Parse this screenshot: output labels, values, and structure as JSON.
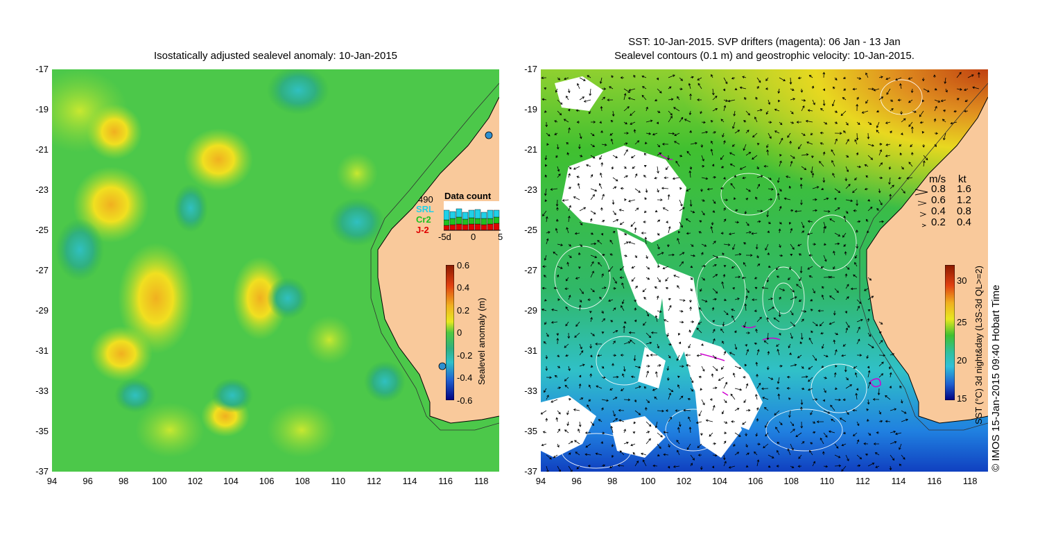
{
  "left_panel": {
    "title": "Isostatically adjusted sealevel anomaly: 10-Jan-2015",
    "y_ticks": [
      "-17",
      "-19",
      "-21",
      "-23",
      "-25",
      "-27",
      "-29",
      "-31",
      "-33",
      "-35",
      "-37"
    ],
    "x_ticks": [
      "94",
      "96",
      "98",
      "100",
      "102",
      "104",
      "106",
      "108",
      "110",
      "112",
      "114",
      "116",
      "118"
    ],
    "colorbar": {
      "label": "Sealevel anomaly (m)",
      "ticks": [
        "0.6",
        "0.4",
        "0.2",
        "0",
        "-0.2",
        "-0.4",
        "-0.6"
      ]
    },
    "data_count": {
      "title": "Data count",
      "max_label": "490",
      "missions": [
        {
          "name": "SRL",
          "color": "#20d0e8"
        },
        {
          "name": "Cr2",
          "color": "#20c020"
        },
        {
          "name": "J-2",
          "color": "#e00000"
        }
      ],
      "x_ticks": [
        "-5d",
        "0",
        "5"
      ]
    }
  },
  "right_panel": {
    "title_line1": "SST: 10-Jan-2015. SVP drifters (magenta): 06 Jan - 13 Jan",
    "title_line2": "Sealevel contours (0.1 m) and geostrophic velocity: 10-Jan-2015.",
    "y_ticks": [
      "-17",
      "-19",
      "-21",
      "-23",
      "-25",
      "-27",
      "-29",
      "-31",
      "-33",
      "-35",
      "-37"
    ],
    "x_ticks": [
      "94",
      "96",
      "98",
      "100",
      "102",
      "104",
      "106",
      "108",
      "110",
      "112",
      "114",
      "116",
      "118"
    ],
    "speed_legend": {
      "header_ms": "m/s",
      "header_kt": "kt",
      "rows": [
        {
          "ms": "0.8",
          "kt": "1.6"
        },
        {
          "ms": "0.6",
          "kt": "1.2"
        },
        {
          "ms": "0.4",
          "kt": "0.8"
        },
        {
          "ms": "0.2",
          "kt": "0.4"
        }
      ]
    },
    "colorbar": {
      "label": "SST (°C) 3d night&day (L3S-3d QL>=2)",
      "ticks": [
        "30",
        "25",
        "20",
        "15"
      ]
    }
  },
  "credit": "© IMOS 15-Jan-2015 09:40 Hobart Time",
  "colors": {
    "land": "#f9c99b",
    "sla_green": "#3cc63c",
    "sst_green": "#40c030",
    "cloud": "#ffffff",
    "drifter": "#d000d0"
  }
}
